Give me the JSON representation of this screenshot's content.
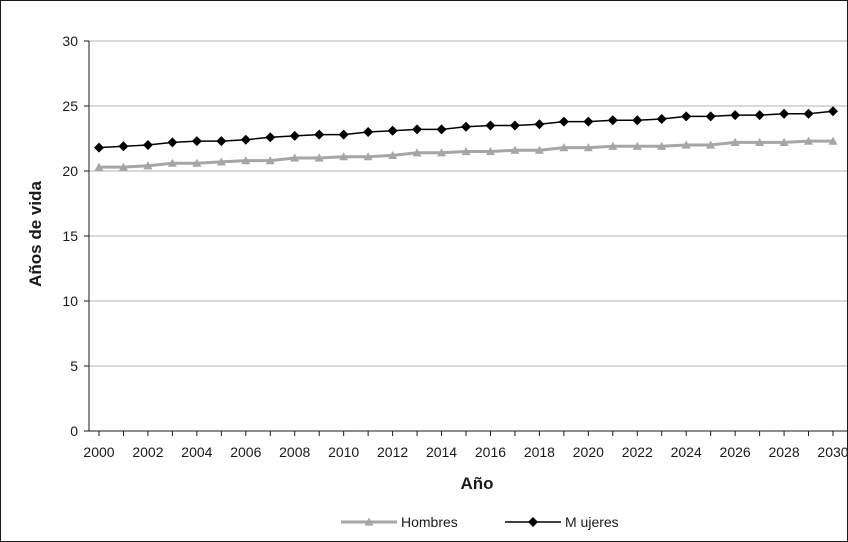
{
  "chart_data": {
    "type": "line",
    "xlabel": "Año",
    "ylabel": "Años de vida",
    "ylim": [
      0,
      30
    ],
    "yticks": [
      0,
      5,
      10,
      15,
      20,
      25,
      30
    ],
    "xlim": [
      2000,
      2030
    ],
    "xticks": [
      2000,
      2002,
      2004,
      2006,
      2008,
      2010,
      2012,
      2014,
      2016,
      2018,
      2020,
      2022,
      2024,
      2026,
      2028,
      2030
    ],
    "grid": "horizontal",
    "legend_position": "bottom",
    "x": [
      2000,
      2001,
      2002,
      2003,
      2004,
      2005,
      2006,
      2007,
      2008,
      2009,
      2010,
      2011,
      2012,
      2013,
      2014,
      2015,
      2016,
      2017,
      2018,
      2019,
      2020,
      2021,
      2022,
      2023,
      2024,
      2025,
      2026,
      2027,
      2028,
      2029,
      2030
    ],
    "series": [
      {
        "name": "Hombres",
        "color": "#a6a6a6",
        "marker": "triangle",
        "values": [
          20.3,
          20.3,
          20.4,
          20.6,
          20.6,
          20.7,
          20.8,
          20.8,
          21.0,
          21.0,
          21.1,
          21.1,
          21.2,
          21.4,
          21.4,
          21.5,
          21.5,
          21.6,
          21.6,
          21.8,
          21.8,
          21.9,
          21.9,
          21.9,
          22.0,
          22.0,
          22.2,
          22.2,
          22.2,
          22.3,
          22.3
        ]
      },
      {
        "name": "M ujeres",
        "color": "#000000",
        "marker": "diamond",
        "values": [
          21.8,
          21.9,
          22.0,
          22.2,
          22.3,
          22.3,
          22.4,
          22.6,
          22.7,
          22.8,
          22.8,
          23.0,
          23.1,
          23.2,
          23.2,
          23.4,
          23.5,
          23.5,
          23.6,
          23.8,
          23.8,
          23.9,
          23.9,
          24.0,
          24.2,
          24.2,
          24.3,
          24.3,
          24.4,
          24.4,
          24.6
        ]
      }
    ]
  }
}
